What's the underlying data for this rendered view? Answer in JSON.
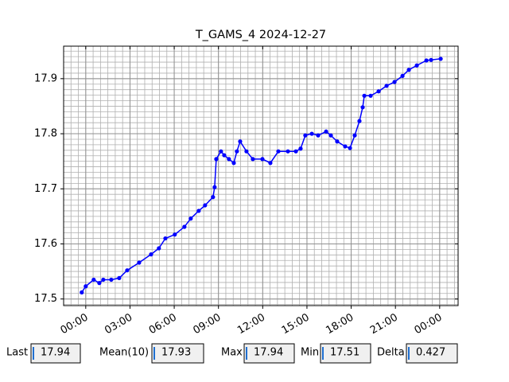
{
  "chart_data": {
    "type": "line",
    "title": "T_GAMS_4 2024-12-27",
    "x": [
      -0.27,
      0,
      0.54,
      0.92,
      1.19,
      1.73,
      2.27,
      2.81,
      3.62,
      4.43,
      4.96,
      5.4,
      6.04,
      6.69,
      7.12,
      7.66,
      8.09,
      8.63,
      8.74,
      8.85,
      9.17,
      9.39,
      9.71,
      10.04,
      10.25,
      10.47,
      10.9,
      11.33,
      11.98,
      12.52,
      13.06,
      13.71,
      14.25,
      14.57,
      14.89,
      15.33,
      15.76,
      16.3,
      16.62,
      17.05,
      17.59,
      17.92,
      18.24,
      18.56,
      18.78,
      18.89,
      19.32,
      19.86,
      20.4,
      20.94,
      21.48,
      21.91,
      22.45,
      23.1,
      23.42,
      24.07
    ],
    "series": [
      {
        "name": "T_GAMS_4",
        "color": "#0000ff",
        "values": [
          17.512,
          17.523,
          17.535,
          17.529,
          17.535,
          17.535,
          17.538,
          17.552,
          17.566,
          17.581,
          17.592,
          17.61,
          17.617,
          17.631,
          17.646,
          17.66,
          17.67,
          17.685,
          17.703,
          17.754,
          17.768,
          17.761,
          17.754,
          17.747,
          17.768,
          17.786,
          17.768,
          17.754,
          17.754,
          17.747,
          17.768,
          17.768,
          17.768,
          17.773,
          17.797,
          17.8,
          17.797,
          17.804,
          17.797,
          17.786,
          17.777,
          17.774,
          17.797,
          17.823,
          17.848,
          17.869,
          17.869,
          17.877,
          17.887,
          17.894,
          17.905,
          17.916,
          17.924,
          17.933,
          17.934,
          17.936
        ]
      }
    ],
    "xlim": [
      -1.5,
      25.25
    ],
    "xticks": [
      {
        "value": 0,
        "label": "00:00"
      },
      {
        "value": 3,
        "label": "03:00"
      },
      {
        "value": 6,
        "label": "06:00"
      },
      {
        "value": 9,
        "label": "09:00"
      },
      {
        "value": 12,
        "label": "12:00"
      },
      {
        "value": 15,
        "label": "15:00"
      },
      {
        "value": 18,
        "label": "18:00"
      },
      {
        "value": 21,
        "label": "21:00"
      },
      {
        "value": 24,
        "label": "00:00"
      }
    ],
    "ylim": [
      17.488,
      17.959
    ],
    "yticks": [
      17.5,
      17.6,
      17.7,
      17.8,
      17.9
    ],
    "grid": true,
    "minor_grid": true
  },
  "stats": [
    {
      "label": "Last",
      "value": "17.94"
    },
    {
      "label": "Mean(10)",
      "value": "17.93"
    },
    {
      "label": "Max",
      "value": "17.94"
    },
    {
      "label": "Min",
      "value": "17.51"
    },
    {
      "label": "Delta",
      "value": "0.427"
    }
  ]
}
